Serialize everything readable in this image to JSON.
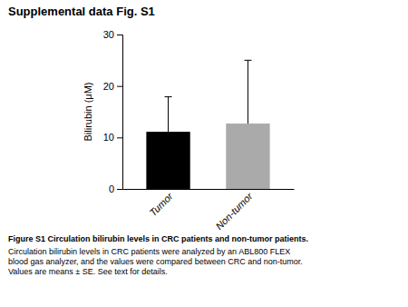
{
  "chart_data": {
    "type": "bar",
    "title": "Supplemental data Fig. S1",
    "categories": [
      "Tumor",
      "Non-tumor"
    ],
    "values": [
      11.1,
      12.7
    ],
    "errors": [
      6.8,
      12.3
    ],
    "colors": [
      "#000000",
      "#aaaaaa"
    ],
    "ylabel": "Bilirubin (μM)",
    "ylim": [
      0,
      30
    ],
    "yticks": [
      0,
      10,
      20,
      30
    ],
    "grid": false,
    "annotations": [
      "Figure S1 Circulation bilirubin levels in CRC patients and non-tumor patients.",
      "Circulation bilirubin levels in CRC patients were analyzed by an ABL800 FLEX\nblood gas analyzer, and the values were compared between CRC and non-tumor.\nValues are means ± SE. See text for details."
    ]
  }
}
